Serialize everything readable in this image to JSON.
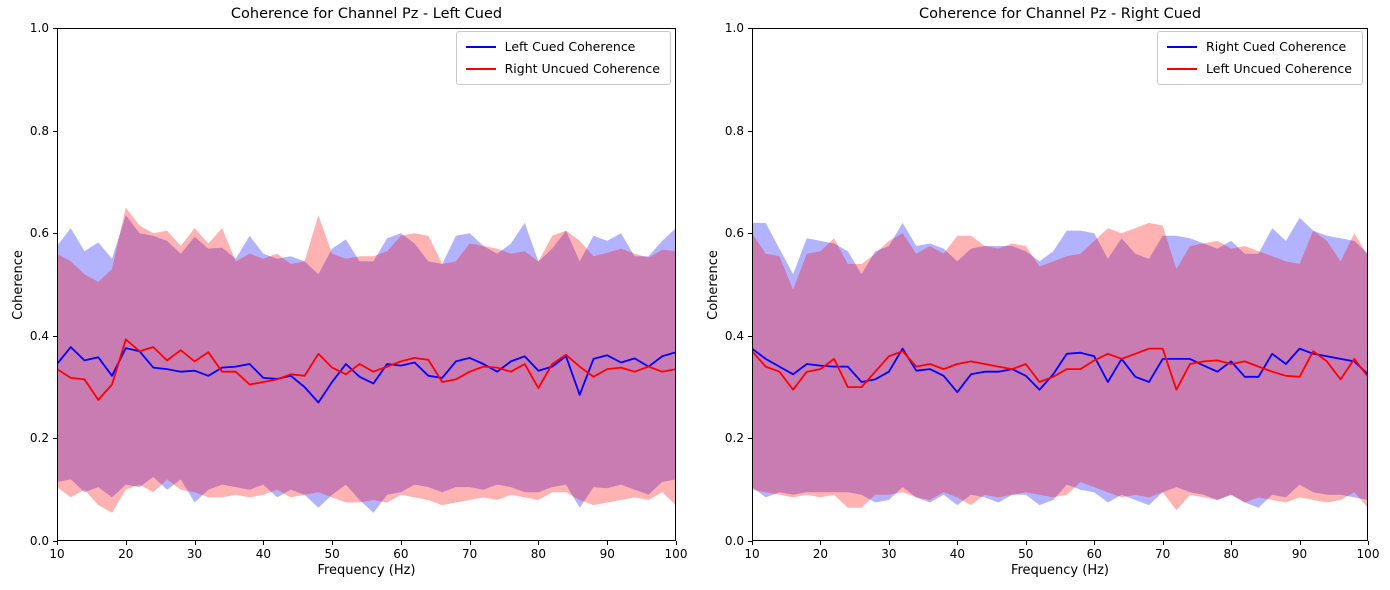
{
  "page": {
    "background": "#ffffff"
  },
  "chart_data": [
    {
      "type": "line",
      "title": "Coherence for Channel Pz - Left Cued",
      "xlabel": "Frequency (Hz)",
      "ylabel": "Coherence",
      "xlim": [
        10,
        100
      ],
      "ylim": [
        0.0,
        1.0
      ],
      "xticks": [
        10,
        20,
        30,
        40,
        50,
        60,
        70,
        80,
        90,
        100
      ],
      "xticklabels": [
        "10",
        "20",
        "30",
        "40",
        "50",
        "60",
        "70",
        "80",
        "90",
        "100"
      ],
      "yticks": [
        0.0,
        0.2,
        0.4,
        0.6,
        0.8,
        1.0
      ],
      "yticklabels": [
        "0.0",
        "0.2",
        "0.4",
        "0.6",
        "0.8",
        "1.0"
      ],
      "legend_position": "upper right",
      "grid": false,
      "band_opacity": 0.3,
      "x": [
        10,
        12,
        14,
        16,
        18,
        20,
        22,
        24,
        26,
        28,
        30,
        32,
        34,
        36,
        38,
        40,
        42,
        44,
        46,
        48,
        50,
        52,
        54,
        56,
        58,
        60,
        62,
        64,
        66,
        68,
        70,
        72,
        74,
        76,
        78,
        80,
        82,
        84,
        86,
        88,
        90,
        92,
        94,
        96,
        98,
        100
      ],
      "series": [
        {
          "name": "Left Cued Coherence",
          "color": "#0000ff",
          "values": [
            0.345,
            0.378,
            0.352,
            0.358,
            0.322,
            0.376,
            0.37,
            0.338,
            0.335,
            0.33,
            0.332,
            0.322,
            0.338,
            0.34,
            0.345,
            0.318,
            0.316,
            0.322,
            0.3,
            0.27,
            0.31,
            0.345,
            0.32,
            0.307,
            0.345,
            0.342,
            0.348,
            0.322,
            0.318,
            0.35,
            0.357,
            0.345,
            0.33,
            0.35,
            0.36,
            0.332,
            0.34,
            0.36,
            0.285,
            0.355,
            0.362,
            0.348,
            0.356,
            0.34,
            0.36,
            0.368
          ],
          "band_upper": [
            0.575,
            0.61,
            0.565,
            0.582,
            0.55,
            0.635,
            0.6,
            0.595,
            0.585,
            0.56,
            0.593,
            0.57,
            0.572,
            0.55,
            0.595,
            0.56,
            0.55,
            0.555,
            0.545,
            0.52,
            0.57,
            0.588,
            0.545,
            0.545,
            0.59,
            0.6,
            0.58,
            0.545,
            0.54,
            0.595,
            0.6,
            0.575,
            0.56,
            0.58,
            0.62,
            0.545,
            0.57,
            0.605,
            0.545,
            0.595,
            0.585,
            0.6,
            0.555,
            0.555,
            0.585,
            0.61
          ],
          "band_lower": [
            0.115,
            0.12,
            0.095,
            0.105,
            0.085,
            0.11,
            0.105,
            0.125,
            0.1,
            0.12,
            0.075,
            0.1,
            0.11,
            0.105,
            0.1,
            0.11,
            0.085,
            0.1,
            0.09,
            0.065,
            0.09,
            0.11,
            0.08,
            0.055,
            0.09,
            0.095,
            0.11,
            0.105,
            0.095,
            0.105,
            0.105,
            0.1,
            0.11,
            0.105,
            0.095,
            0.095,
            0.105,
            0.11,
            0.065,
            0.105,
            0.103,
            0.11,
            0.1,
            0.09,
            0.115,
            0.12
          ]
        },
        {
          "name": "Right Uncued Coherence",
          "color": "#ff0000",
          "values": [
            0.335,
            0.318,
            0.315,
            0.275,
            0.305,
            0.393,
            0.37,
            0.378,
            0.352,
            0.372,
            0.35,
            0.368,
            0.33,
            0.33,
            0.305,
            0.31,
            0.315,
            0.325,
            0.322,
            0.365,
            0.338,
            0.325,
            0.345,
            0.33,
            0.34,
            0.35,
            0.357,
            0.353,
            0.31,
            0.315,
            0.33,
            0.34,
            0.338,
            0.33,
            0.345,
            0.298,
            0.345,
            0.363,
            0.34,
            0.32,
            0.335,
            0.338,
            0.33,
            0.34,
            0.33,
            0.335
          ],
          "band_upper": [
            0.56,
            0.545,
            0.52,
            0.505,
            0.53,
            0.65,
            0.615,
            0.6,
            0.605,
            0.575,
            0.61,
            0.58,
            0.61,
            0.545,
            0.56,
            0.55,
            0.56,
            0.54,
            0.545,
            0.635,
            0.56,
            0.55,
            0.555,
            0.555,
            0.565,
            0.595,
            0.6,
            0.595,
            0.54,
            0.545,
            0.58,
            0.575,
            0.57,
            0.56,
            0.565,
            0.545,
            0.595,
            0.605,
            0.585,
            0.555,
            0.562,
            0.57,
            0.56,
            0.552,
            0.568,
            0.565
          ],
          "band_lower": [
            0.105,
            0.085,
            0.1,
            0.07,
            0.055,
            0.1,
            0.11,
            0.095,
            0.12,
            0.1,
            0.095,
            0.085,
            0.085,
            0.09,
            0.085,
            0.09,
            0.1,
            0.085,
            0.09,
            0.095,
            0.085,
            0.075,
            0.075,
            0.08,
            0.075,
            0.09,
            0.085,
            0.08,
            0.07,
            0.075,
            0.08,
            0.085,
            0.08,
            0.09,
            0.085,
            0.08,
            0.095,
            0.095,
            0.08,
            0.07,
            0.075,
            0.08,
            0.085,
            0.08,
            0.095,
            0.07
          ]
        }
      ]
    },
    {
      "type": "line",
      "title": "Coherence for Channel Pz - Right Cued",
      "xlabel": "Frequency (Hz)",
      "ylabel": "Coherence",
      "xlim": [
        10,
        100
      ],
      "ylim": [
        0.0,
        1.0
      ],
      "xticks": [
        10,
        20,
        30,
        40,
        50,
        60,
        70,
        80,
        90,
        100
      ],
      "xticklabels": [
        "10",
        "20",
        "30",
        "40",
        "50",
        "60",
        "70",
        "80",
        "90",
        "100"
      ],
      "yticks": [
        0.0,
        0.2,
        0.4,
        0.6,
        0.8,
        1.0
      ],
      "yticklabels": [
        "0.0",
        "0.2",
        "0.4",
        "0.6",
        "0.8",
        "1.0"
      ],
      "legend_position": "upper right",
      "grid": false,
      "band_opacity": 0.3,
      "x": [
        10,
        12,
        14,
        16,
        18,
        20,
        22,
        24,
        26,
        28,
        30,
        32,
        34,
        36,
        38,
        40,
        42,
        44,
        46,
        48,
        50,
        52,
        54,
        56,
        58,
        60,
        62,
        64,
        66,
        68,
        70,
        72,
        74,
        76,
        78,
        80,
        82,
        84,
        86,
        88,
        90,
        92,
        94,
        96,
        98,
        100
      ],
      "series": [
        {
          "name": "Right Cued Coherence",
          "color": "#0000ff",
          "values": [
            0.375,
            0.355,
            0.34,
            0.325,
            0.345,
            0.342,
            0.34,
            0.34,
            0.31,
            0.315,
            0.33,
            0.375,
            0.332,
            0.335,
            0.322,
            0.29,
            0.325,
            0.33,
            0.33,
            0.335,
            0.322,
            0.295,
            0.325,
            0.365,
            0.367,
            0.36,
            0.31,
            0.355,
            0.32,
            0.31,
            0.355,
            0.355,
            0.355,
            0.342,
            0.33,
            0.35,
            0.32,
            0.32,
            0.365,
            0.345,
            0.375,
            0.365,
            0.36,
            0.355,
            0.35,
            0.325
          ],
          "band_upper": [
            0.62,
            0.62,
            0.57,
            0.52,
            0.59,
            0.585,
            0.58,
            0.565,
            0.52,
            0.565,
            0.575,
            0.62,
            0.575,
            0.58,
            0.57,
            0.545,
            0.57,
            0.575,
            0.575,
            0.575,
            0.565,
            0.545,
            0.565,
            0.605,
            0.605,
            0.6,
            0.55,
            0.59,
            0.56,
            0.55,
            0.595,
            0.595,
            0.59,
            0.58,
            0.57,
            0.585,
            0.56,
            0.56,
            0.61,
            0.585,
            0.63,
            0.605,
            0.595,
            0.59,
            0.585,
            0.56
          ],
          "band_lower": [
            0.105,
            0.085,
            0.095,
            0.09,
            0.095,
            0.095,
            0.095,
            0.095,
            0.09,
            0.075,
            0.08,
            0.105,
            0.085,
            0.075,
            0.09,
            0.07,
            0.09,
            0.085,
            0.075,
            0.09,
            0.09,
            0.07,
            0.08,
            0.11,
            0.1,
            0.095,
            0.075,
            0.09,
            0.08,
            0.07,
            0.095,
            0.105,
            0.095,
            0.09,
            0.08,
            0.09,
            0.075,
            0.065,
            0.09,
            0.085,
            0.11,
            0.095,
            0.09,
            0.09,
            0.085,
            0.08
          ]
        },
        {
          "name": "Left Uncued Coherence",
          "color": "#ff0000",
          "values": [
            0.37,
            0.34,
            0.33,
            0.295,
            0.33,
            0.335,
            0.355,
            0.3,
            0.3,
            0.33,
            0.36,
            0.37,
            0.34,
            0.345,
            0.335,
            0.345,
            0.35,
            0.345,
            0.34,
            0.335,
            0.345,
            0.31,
            0.32,
            0.335,
            0.335,
            0.352,
            0.365,
            0.355,
            0.365,
            0.375,
            0.375,
            0.295,
            0.345,
            0.35,
            0.352,
            0.345,
            0.35,
            0.34,
            0.33,
            0.322,
            0.32,
            0.37,
            0.35,
            0.315,
            0.355,
            0.32
          ],
          "band_upper": [
            0.6,
            0.56,
            0.555,
            0.49,
            0.56,
            0.565,
            0.59,
            0.54,
            0.54,
            0.56,
            0.585,
            0.6,
            0.56,
            0.575,
            0.56,
            0.595,
            0.595,
            0.575,
            0.57,
            0.58,
            0.575,
            0.535,
            0.545,
            0.555,
            0.56,
            0.585,
            0.61,
            0.6,
            0.61,
            0.62,
            0.615,
            0.53,
            0.575,
            0.58,
            0.585,
            0.57,
            0.575,
            0.565,
            0.555,
            0.545,
            0.54,
            0.605,
            0.585,
            0.545,
            0.6,
            0.555
          ],
          "band_lower": [
            0.1,
            0.095,
            0.09,
            0.085,
            0.09,
            0.085,
            0.09,
            0.065,
            0.065,
            0.09,
            0.09,
            0.095,
            0.085,
            0.08,
            0.095,
            0.085,
            0.07,
            0.09,
            0.085,
            0.09,
            0.095,
            0.09,
            0.085,
            0.09,
            0.115,
            0.105,
            0.095,
            0.085,
            0.09,
            0.085,
            0.095,
            0.06,
            0.09,
            0.085,
            0.08,
            0.09,
            0.075,
            0.085,
            0.08,
            0.075,
            0.085,
            0.08,
            0.075,
            0.08,
            0.095,
            0.065
          ]
        }
      ]
    }
  ]
}
